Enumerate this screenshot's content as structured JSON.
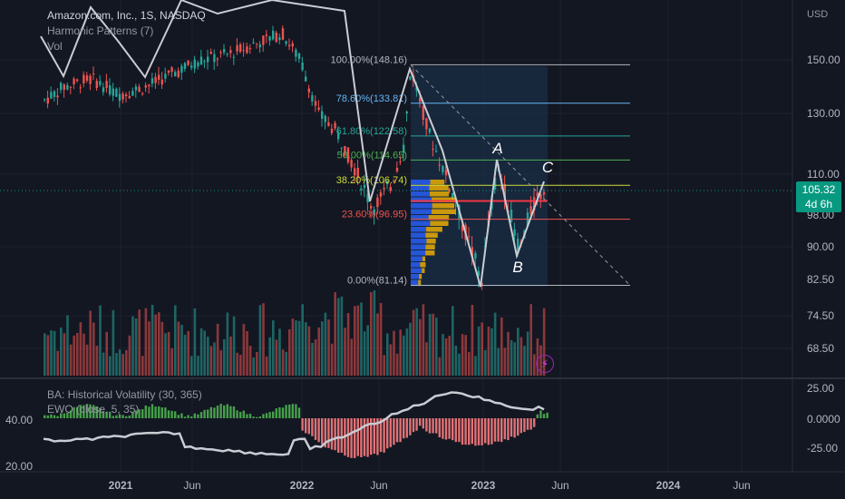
{
  "header": {
    "title": "Amazon.com, Inc., 1S, NASDAQ",
    "indicator1": "Harmonic Patterns (7)",
    "indicator2": "Vol",
    "currency": "USD"
  },
  "price_tag": {
    "price": "105.32",
    "countdown": "4d 6h"
  },
  "lower_pane": {
    "label1": "BA: Historical Volatility (30, 365)",
    "label2": "EWO (close, 5, 35)",
    "left_ticks": [
      "40.00",
      "20.00"
    ],
    "right_ticks": [
      "25.00",
      "0.0000",
      "-25.00"
    ]
  },
  "colors": {
    "up": "#26a69a",
    "down": "#ef5350",
    "bg": "#131722",
    "line": "#c9ccd3"
  },
  "chart_data": {
    "type": "candlestick",
    "x_ticks": [
      "2021",
      "Jun",
      "2022",
      "Jun",
      "2023",
      "Jun",
      "2024",
      "Jun"
    ],
    "y_ticks": [
      "150.00",
      "130.00",
      "110.00",
      "98.00",
      "90.00",
      "82.50",
      "74.50",
      "68.50"
    ],
    "fib_levels": [
      {
        "label": "100.00%(148.16)",
        "value": 148.16,
        "color": "#b2b5be"
      },
      {
        "label": "78.60%(133.81)",
        "value": 133.81,
        "color": "#64b5f6"
      },
      {
        "label": "61.80%(122.58)",
        "value": 122.58,
        "color": "#26a69a"
      },
      {
        "label": "50.00%(114.65)",
        "value": 114.65,
        "color": "#4caf50"
      },
      {
        "label": "38.20%(106.74)",
        "value": 106.74,
        "color": "#cddc39"
      },
      {
        "label": "23.60%(96.95)",
        "value": 96.95,
        "color": "#ef5350"
      },
      {
        "label": "0.00%(81.14)",
        "value": 81.14,
        "color": "#b2b5be"
      }
    ],
    "points": [
      {
        "label": "A",
        "value": 114.65
      },
      {
        "label": "B",
        "value": 88.5
      },
      {
        "label": "C",
        "value": 106.5
      }
    ],
    "last_price": 105.32
  }
}
